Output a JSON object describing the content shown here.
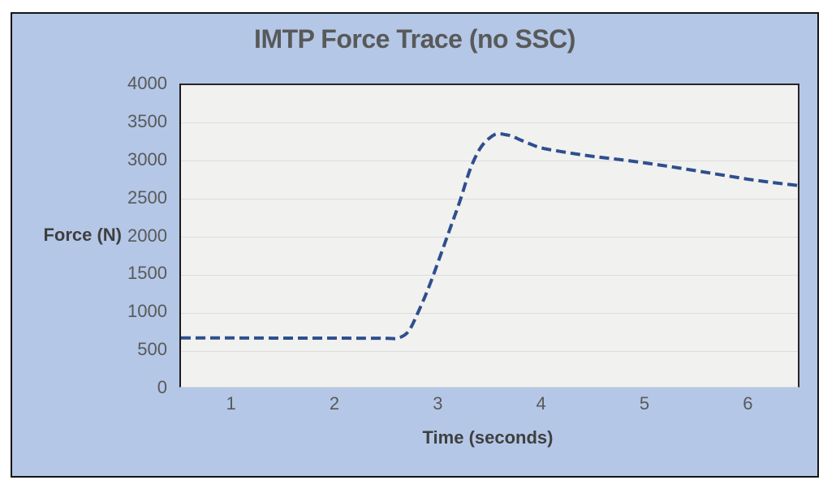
{
  "chart": {
    "title": "IMTP Force Trace (no SSC)",
    "y_axis_label": "Force (N)",
    "x_axis_label": "Time (seconds)"
  },
  "colors": {
    "chart_background": "#b4c7e7",
    "plot_background": "#f1f1f0",
    "gridline": "#dcdcdc",
    "outer_border": "#141414",
    "axis_line": "#262626",
    "text_gray": "#595959",
    "axis_title_gray": "#3f3f3f",
    "line_blue": "#2e4f8e"
  },
  "chart_data": {
    "type": "line",
    "title": "IMTP Force Trace (no SSC)",
    "xlabel": "Time (seconds)",
    "ylabel": "Force (N)",
    "xlim": [
      0.5,
      6.5
    ],
    "ylim": [
      0,
      4000
    ],
    "x_ticks": [
      1,
      2,
      3,
      4,
      5,
      6
    ],
    "y_ticks": [
      0,
      500,
      1000,
      1500,
      2000,
      2500,
      3000,
      3500,
      4000
    ],
    "grid": "horizontal-only",
    "legend": "none",
    "line_style": "dashed",
    "line_color": "#2e4f8e",
    "line_width": 4,
    "series": [
      {
        "name": "IMTP force trace",
        "points": [
          [
            0.5,
            675
          ],
          [
            0.75,
            674
          ],
          [
            1.0,
            674
          ],
          [
            1.25,
            673
          ],
          [
            1.5,
            672
          ],
          [
            1.75,
            672
          ],
          [
            2.0,
            672
          ],
          [
            2.25,
            671
          ],
          [
            2.5,
            670
          ],
          [
            2.6,
            673
          ],
          [
            2.7,
            760
          ],
          [
            2.8,
            1030
          ],
          [
            2.9,
            1350
          ],
          [
            3.0,
            1720
          ],
          [
            3.1,
            2100
          ],
          [
            3.2,
            2480
          ],
          [
            3.3,
            2900
          ],
          [
            3.4,
            3180
          ],
          [
            3.5,
            3320
          ],
          [
            3.57,
            3360
          ],
          [
            3.65,
            3345
          ],
          [
            3.7,
            3330
          ],
          [
            3.8,
            3270
          ],
          [
            3.9,
            3215
          ],
          [
            4.0,
            3170
          ],
          [
            4.25,
            3110
          ],
          [
            4.5,
            3060
          ],
          [
            4.75,
            3020
          ],
          [
            5.0,
            2975
          ],
          [
            5.25,
            2925
          ],
          [
            5.5,
            2870
          ],
          [
            5.75,
            2815
          ],
          [
            6.0,
            2760
          ],
          [
            6.25,
            2715
          ],
          [
            6.5,
            2675
          ]
        ]
      }
    ]
  }
}
